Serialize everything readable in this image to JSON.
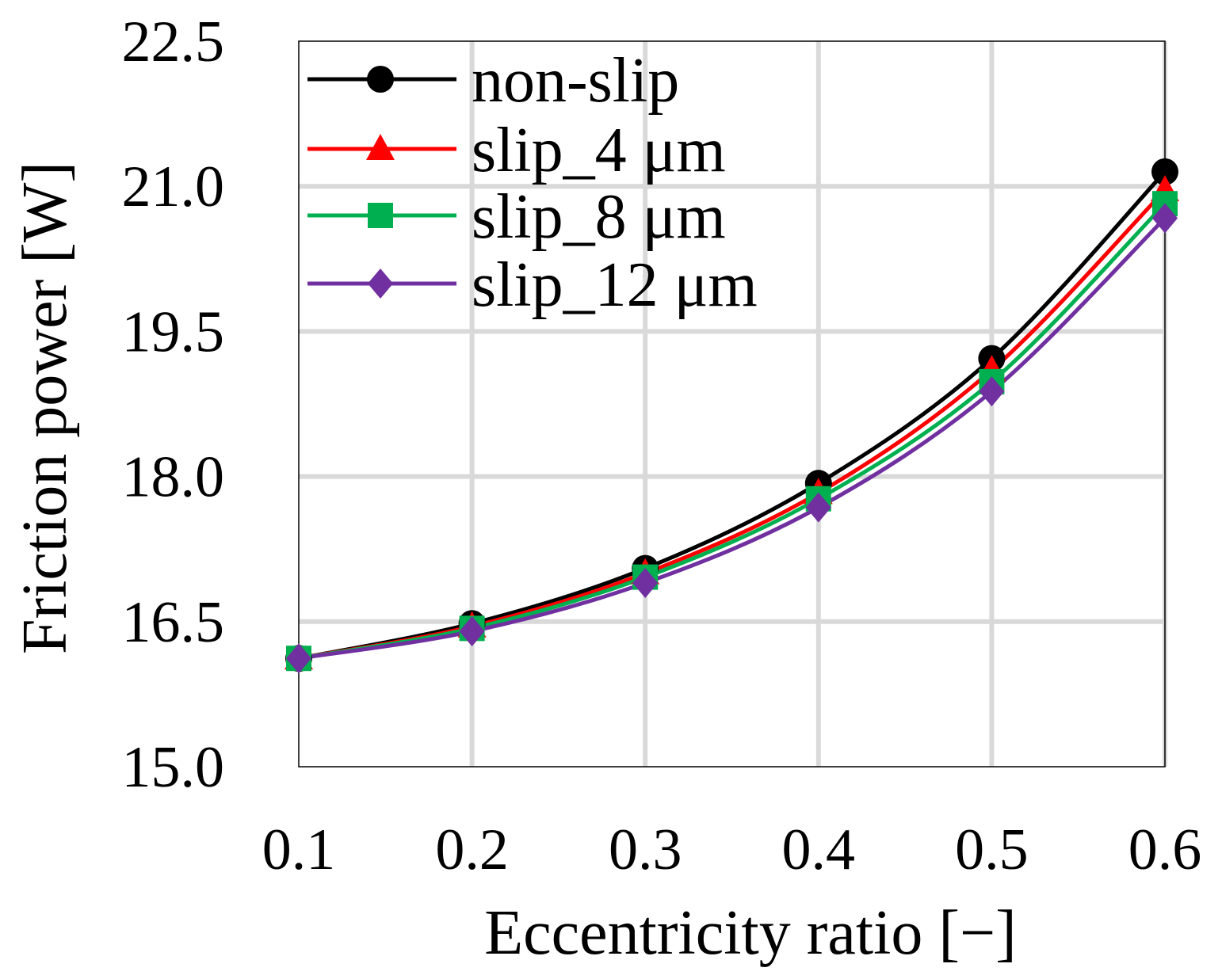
{
  "chart_data": {
    "type": "line",
    "title": "",
    "xlabel": "Eccentricity ratio [−]",
    "ylabel": "Friction power [W]",
    "xlim": [
      0.1,
      0.6
    ],
    "ylim": [
      15.0,
      22.5
    ],
    "x": [
      0.1,
      0.2,
      0.3,
      0.4,
      0.5,
      0.6
    ],
    "x_tick_labels": [
      "0.1",
      "0.2",
      "0.3",
      "0.4",
      "0.5",
      "0.6"
    ],
    "y_ticks": [
      15.0,
      16.5,
      18.0,
      19.5,
      21.0,
      22.5
    ],
    "y_tick_labels": [
      "15.0",
      "16.5",
      "18.0",
      "19.5",
      "21.0",
      "22.5"
    ],
    "grid": true,
    "legend_position": "top-left",
    "series": [
      {
        "name": "non-slip",
        "color": "#000000",
        "marker": "circle",
        "values": [
          16.12,
          16.48,
          17.05,
          17.93,
          19.22,
          21.15
        ]
      },
      {
        "name": "slip_4 μm",
        "color": "#ff0000",
        "marker": "triangle",
        "values": [
          16.12,
          16.45,
          17.0,
          17.83,
          19.1,
          20.96
        ]
      },
      {
        "name": "slip_8 μm",
        "color": "#00b050",
        "marker": "square",
        "values": [
          16.12,
          16.43,
          16.96,
          17.77,
          18.98,
          20.82
        ]
      },
      {
        "name": "slip_12 μm",
        "color": "#7030a0",
        "marker": "diamond",
        "values": [
          16.12,
          16.4,
          16.9,
          17.68,
          18.88,
          20.67
        ]
      }
    ]
  }
}
